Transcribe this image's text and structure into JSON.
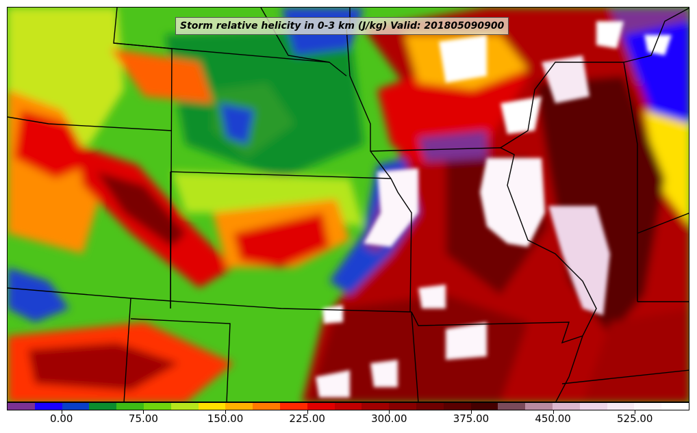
{
  "map": {
    "title": "Storm relative helicity in 0-3 km (J/kg) Valid: 201805090900",
    "projection": "Lambert Conformal (Central US)",
    "field": "Storm relative helicity 0-3 km",
    "units": "J/kg",
    "valid_time": "201805090900"
  },
  "colorbar": {
    "colors": [
      "#7b3294",
      "#1a00ff",
      "#0a3fc8",
      "#0b8c2e",
      "#3dbb16",
      "#6fd40e",
      "#b5e61d",
      "#ffe000",
      "#ffb000",
      "#ff7a00",
      "#ff2a00",
      "#e00000",
      "#c00000",
      "#a00000",
      "#870000",
      "#6e0000",
      "#5a0000",
      "#450000",
      "#7a4a5a",
      "#b98aa0",
      "#dcb7cf",
      "#eed6e8",
      "#f7e9f3",
      "#fdf6fb",
      "#ffffff"
    ],
    "labels": [
      "0.00",
      "75.00",
      "150.00",
      "225.00",
      "300.00",
      "375.00",
      "450.00",
      "525.00"
    ],
    "label_values": [
      0,
      75,
      150,
      225,
      300,
      375,
      450,
      525
    ],
    "min": -50,
    "max": 575
  }
}
